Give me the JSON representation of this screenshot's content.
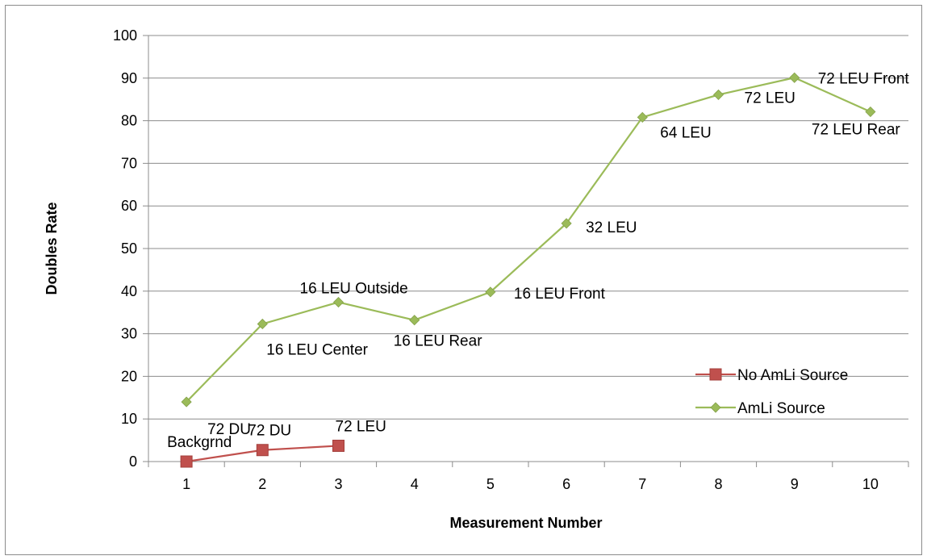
{
  "chart_data": {
    "type": "line",
    "title": "",
    "xlabel": "Measurement Number",
    "ylabel": "Doubles Rate",
    "x": [
      1,
      2,
      3,
      4,
      5,
      6,
      7,
      8,
      9,
      10
    ],
    "ylim": [
      0,
      100
    ],
    "yticks": [
      0,
      10,
      20,
      30,
      40,
      50,
      60,
      70,
      80,
      90,
      100
    ],
    "grid": "horizontal",
    "legend_position": "right",
    "series": [
      {
        "name": "No AmLi Source",
        "color": "#c0504d",
        "marker": "square",
        "x": [
          1,
          2,
          3
        ],
        "values": [
          0,
          2.7,
          3.7
        ],
        "labels": [
          "Backgrnd",
          "72 DU",
          "72 LEU"
        ]
      },
      {
        "name": "AmLi Source",
        "color": "#9bbb59",
        "marker": "diamond",
        "x": [
          1,
          2,
          3,
          4,
          5,
          6,
          7,
          8,
          9,
          10
        ],
        "values": [
          14,
          32.3,
          37.4,
          33.2,
          39.8,
          55.9,
          80.8,
          86.1,
          90.1,
          82.1
        ],
        "labels": [
          "72 DU",
          "16 LEU Center",
          "16 LEU Outside",
          "16 LEU Rear",
          "16 LEU Front",
          "32 LEU",
          "64 LEU",
          "72 LEU",
          "72 LEU Front",
          "72 LEU Rear"
        ]
      }
    ]
  }
}
